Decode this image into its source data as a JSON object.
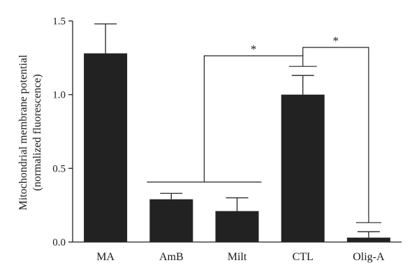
{
  "chart_data": {
    "type": "bar",
    "title": "",
    "xlabel": "",
    "ylabel": "Mitochondrial membrane potential",
    "ylabel_line2": "(normalized fluorescence)",
    "categories": [
      "MA",
      "AmB",
      "Milt",
      "CTL",
      "Olig-A"
    ],
    "values": [
      1.28,
      0.29,
      0.21,
      1.0,
      0.03
    ],
    "errors": [
      0.2,
      0.04,
      0.09,
      0.13,
      0.04
    ],
    "ylim": [
      0,
      1.5
    ],
    "yticks": [
      0.0,
      0.5,
      1.0,
      1.5
    ],
    "ytick_labels": [
      "0.0",
      "0.5",
      "1.0",
      "1.5"
    ],
    "grid": false,
    "bar_color": "#222222",
    "significance": [
      {
        "label": "*",
        "from": [
          "AmB",
          "Milt"
        ],
        "to": "CTL"
      },
      {
        "label": "*",
        "from": [
          "CTL"
        ],
        "to": "Olig-A"
      }
    ]
  }
}
